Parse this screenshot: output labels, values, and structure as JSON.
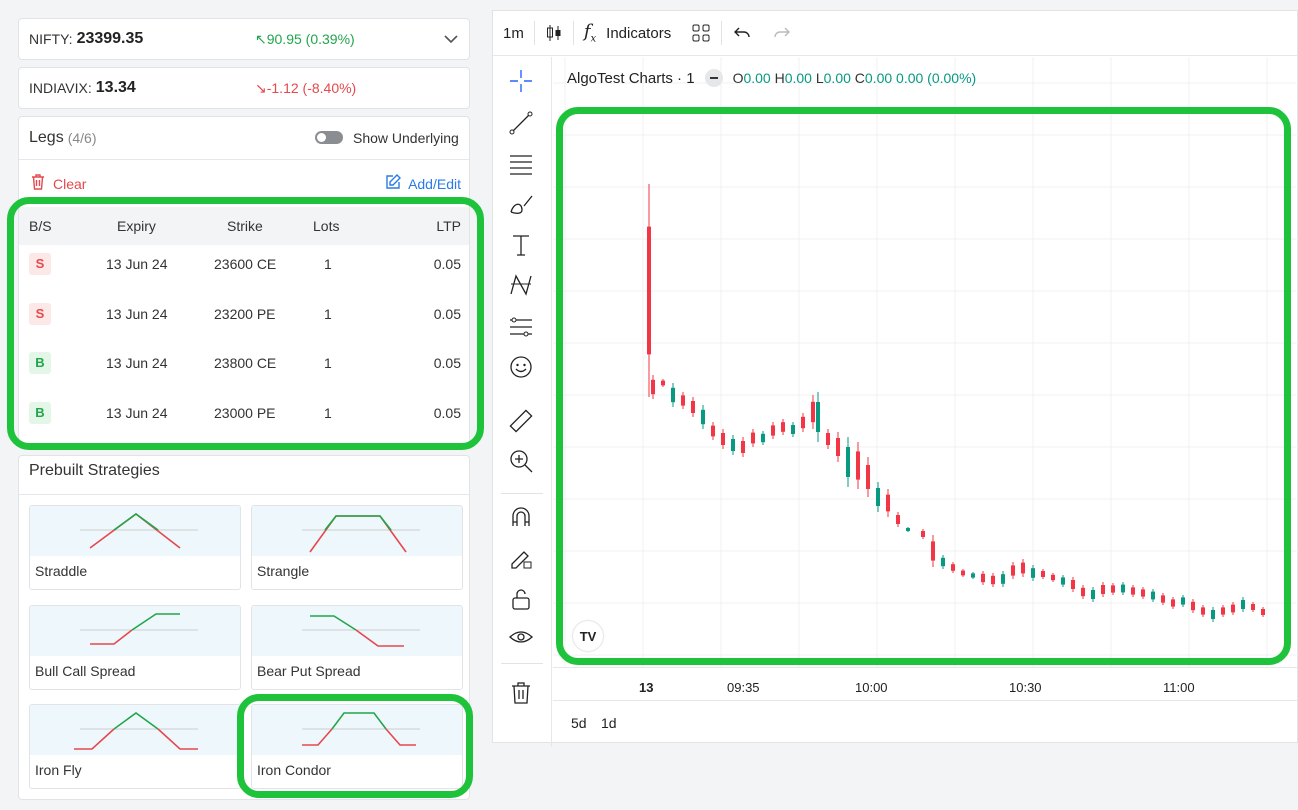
{
  "nifty": {
    "symbol": "NIFTY:",
    "value": "23399.35",
    "change": "↖90.95 (0.39%)"
  },
  "indiavix": {
    "symbol": "INDIAVIX:",
    "value": "13.34",
    "change": "↘-1.12 (-8.40%)"
  },
  "legs": {
    "title": "Legs",
    "count": "(4/6)",
    "show_underlying": "Show Underlying",
    "clear": "Clear",
    "add_edit": "Add/Edit",
    "headers": [
      "B/S",
      "Expiry",
      "Strike",
      "Lots",
      "LTP"
    ],
    "rows": [
      {
        "bs": "S",
        "expiry": "13 Jun 24",
        "strike": "23600 CE",
        "lots": "1",
        "ltp": "0.05"
      },
      {
        "bs": "S",
        "expiry": "13 Jun 24",
        "strike": "23200 PE",
        "lots": "1",
        "ltp": "0.05"
      },
      {
        "bs": "B",
        "expiry": "13 Jun 24",
        "strike": "23800 CE",
        "lots": "1",
        "ltp": "0.05"
      },
      {
        "bs": "B",
        "expiry": "13 Jun 24",
        "strike": "23000 PE",
        "lots": "1",
        "ltp": "0.05"
      }
    ]
  },
  "prebuilt": {
    "title": "Prebuilt Strategies",
    "items": [
      "Straddle",
      "Strangle",
      "Bull Call Spread",
      "Bear Put Spread",
      "Iron Fly",
      "Iron Condor"
    ]
  },
  "chart": {
    "interval": "1m",
    "indicators": "Indicators",
    "title": "AlgoTest Charts · 1",
    "ohlc": {
      "o": "0.00",
      "h": "0.00",
      "l": "0.00",
      "c": "0.00",
      "chg": "0.00 (0.00%)"
    },
    "time_labels": [
      "13",
      "09:35",
      "10:00",
      "10:30",
      "11:00"
    ],
    "ranges": [
      "5d",
      "1d"
    ],
    "colors": {
      "up": "#089981",
      "down": "#f23645",
      "highlight": "#1ec33b"
    }
  }
}
